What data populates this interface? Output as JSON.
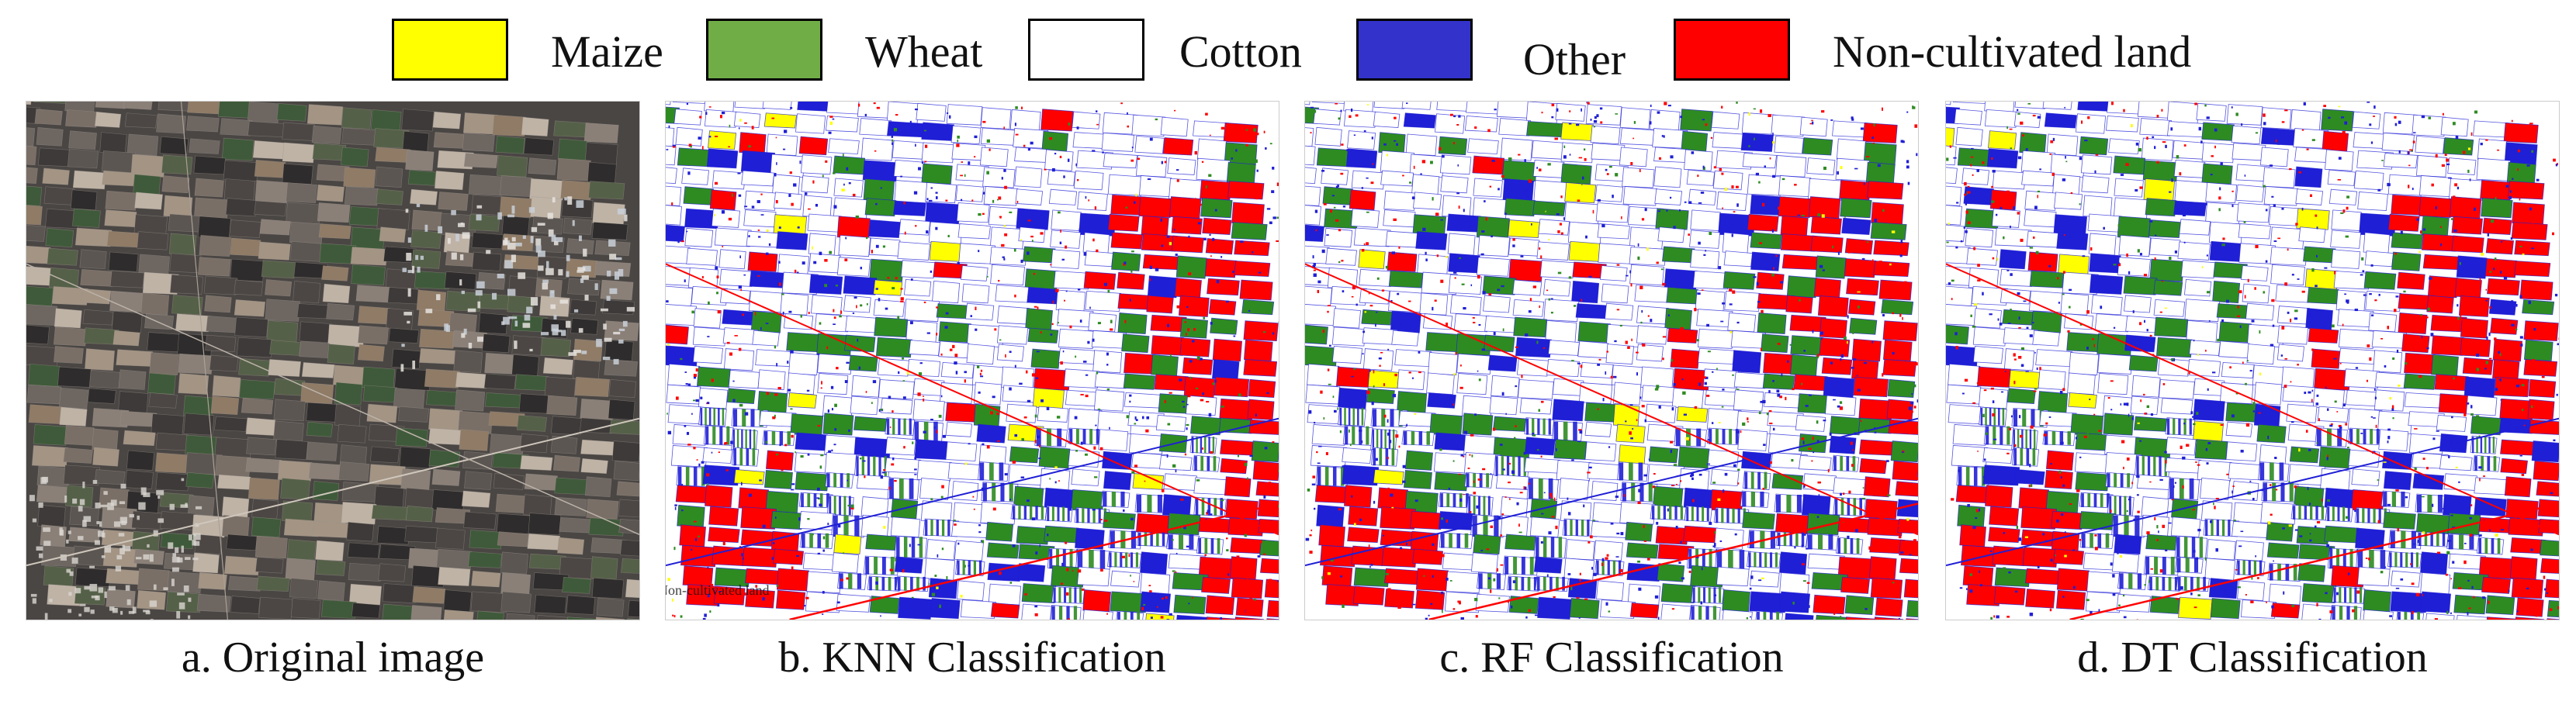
{
  "legend": {
    "items": [
      {
        "label": "Maize",
        "color": "#ffff00"
      },
      {
        "label": "Wheat",
        "color": "#70ad47"
      },
      {
        "label": "Cotton",
        "color": "#ffffff"
      },
      {
        "label": "Other",
        "color": "#3333cc"
      },
      {
        "label": "Non-cultivated land",
        "color": "#ff0000"
      }
    ]
  },
  "panels": [
    {
      "caption": "a. Original image",
      "kind": "original"
    },
    {
      "caption": "b. KNN Classification",
      "kind": "classified",
      "watermark": "Non-cultivated land"
    },
    {
      "caption": "c. RF Classification",
      "kind": "classified"
    },
    {
      "caption": "d. DT Classification",
      "kind": "classified"
    }
  ],
  "palette": {
    "maize": "#ffff00",
    "wheat": "#2e8b22",
    "cotton": "#ffffff",
    "other": "#1f1fd6",
    "noncultivated": "#ff0000",
    "satellite_dark": "#3a3838",
    "satellite_mid": "#6a6663",
    "satellite_light": "#9b948d"
  }
}
